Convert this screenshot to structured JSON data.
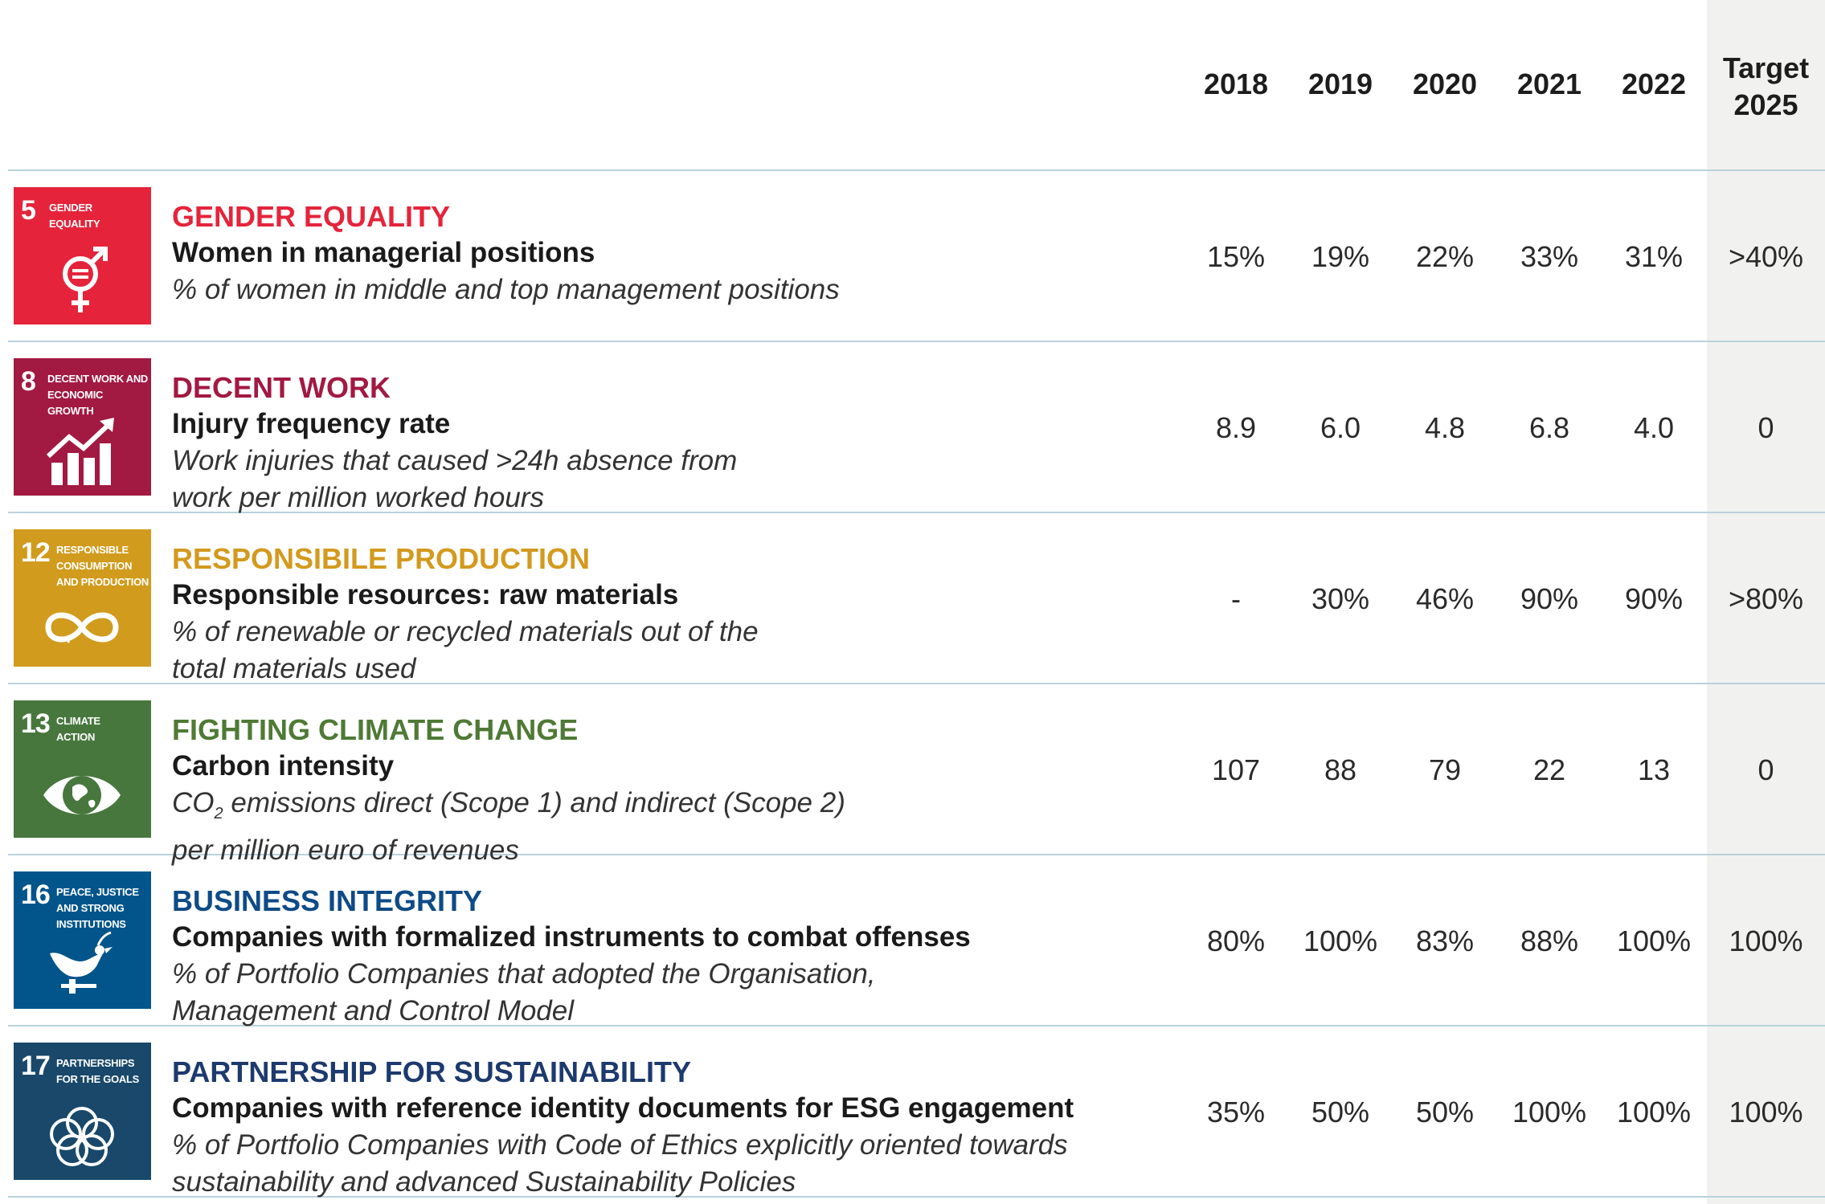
{
  "header": {
    "years": [
      "2018",
      "2019",
      "2020",
      "2021",
      "2022"
    ],
    "target_line1": "Target",
    "target_line2": "2025"
  },
  "rows": [
    {
      "badge_number": "5",
      "badge_line1": "GENDER",
      "badge_line2": "EQUALITY",
      "badge_color": "#e5243b",
      "category": "GENDER EQUALITY",
      "category_color": "#e5243b",
      "metric": "Women in managerial positions",
      "desc_line1": "% of women in middle and top management positions",
      "values": [
        "15%",
        "19%",
        "22%",
        "33%",
        "31%"
      ],
      "target": ">40%"
    },
    {
      "badge_number": "8",
      "badge_line1": "DECENT WORK AND",
      "badge_line2": "ECONOMIC GROWTH",
      "badge_color": "#a21942",
      "category": "DECENT WORK",
      "category_color": "#a21942",
      "metric": "Injury frequency rate",
      "desc_line1": "Work injuries that caused >24h absence from",
      "desc_line2": "work per million worked hours",
      "values": [
        "8.9",
        "6.0",
        "4.8",
        "6.8",
        "4.0"
      ],
      "target": "0"
    },
    {
      "badge_number": "12",
      "badge_line1": "RESPONSIBLE",
      "badge_line2": "CONSUMPTION",
      "badge_line3": "AND PRODUCTION",
      "badge_color": "#d19b1d",
      "category": "RESPONSIBILE PRODUCTION",
      "category_color": "#d39a1f",
      "metric": "Responsible resources: raw materials",
      "desc_line1": "% of renewable or recycled materials out of the",
      "desc_line2": "total materials used",
      "values": [
        "-",
        "30%",
        "46%",
        "90%",
        "90%"
      ],
      "target": ">80%"
    },
    {
      "badge_number": "13",
      "badge_line1": "CLIMATE",
      "badge_line2": "ACTION",
      "badge_color": "#48773e",
      "category": "FIGHTING CLIMATE CHANGE",
      "category_color": "#4f7a35",
      "metric": "Carbon intensity",
      "desc_co": "CO",
      "desc_sub": "2",
      "desc_rest": " emissions direct (Scope 1) and indirect (Scope 2)",
      "desc_line2": "per million euro of revenues",
      "values": [
        "107",
        "88",
        "79",
        "22",
        "13"
      ],
      "target": "0"
    },
    {
      "badge_number": "16",
      "badge_line1": "PEACE, JUSTICE",
      "badge_line2": "AND STRONG",
      "badge_line3": "INSTITUTIONS",
      "badge_color": "#02558b",
      "category": "BUSINESS INTEGRITY",
      "category_color": "#0e4b87",
      "metric": "Companies with formalized instruments to combat offenses",
      "desc_line1": "% of Portfolio Companies that adopted the Organisation,",
      "desc_line2": "Management and Control Model",
      "values": [
        "80%",
        "100%",
        "83%",
        "88%",
        "100%"
      ],
      "target": "100%"
    },
    {
      "badge_number": "17",
      "badge_line1": "PARTNERSHIPS",
      "badge_line2": "FOR THE GOALS",
      "badge_color": "#19486a",
      "category": "PARTNERSHIP FOR SUSTAINABILITY",
      "category_color": "#1d3a6e",
      "metric": "Companies with reference identity documents for ESG engagement",
      "desc_line1": "% of Portfolio Companies with Code of Ethics explicitly oriented towards",
      "desc_line2": "sustainability and advanced Sustainability Policies",
      "values": [
        "35%",
        "50%",
        "50%",
        "100%",
        "100%"
      ],
      "target": "100%"
    }
  ]
}
